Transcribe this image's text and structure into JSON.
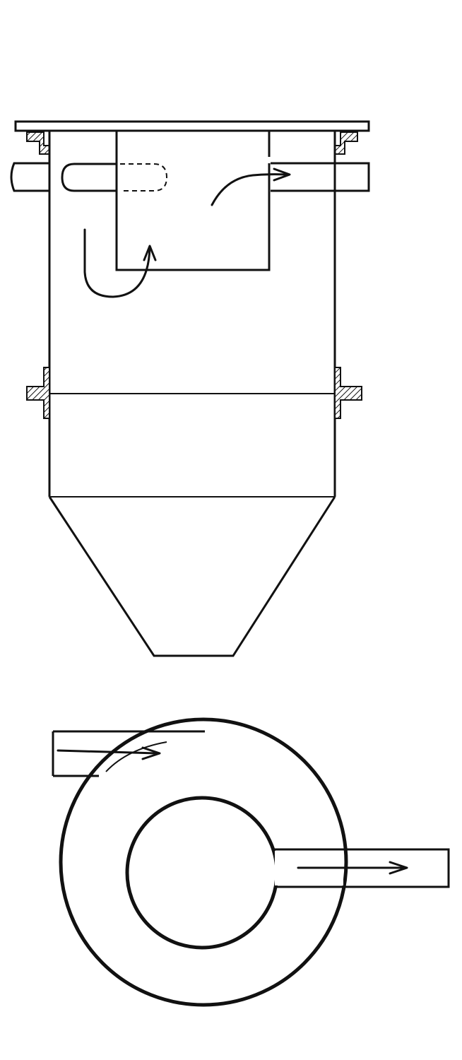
{
  "figure": {
    "views": [
      {
        "id": "side-elevation",
        "label": ""
      },
      {
        "id": "plan-view",
        "label": ""
      }
    ],
    "parts": [
      "cover-plate",
      "tangential-inlet-pipe",
      "outlet-pipe",
      "vortex-finder",
      "cylindrical-body",
      "mid-flange",
      "conical-hopper",
      "discharge-opening"
    ],
    "flow_arrows": 4,
    "line_color": "#111111",
    "background": "#ffffff"
  }
}
